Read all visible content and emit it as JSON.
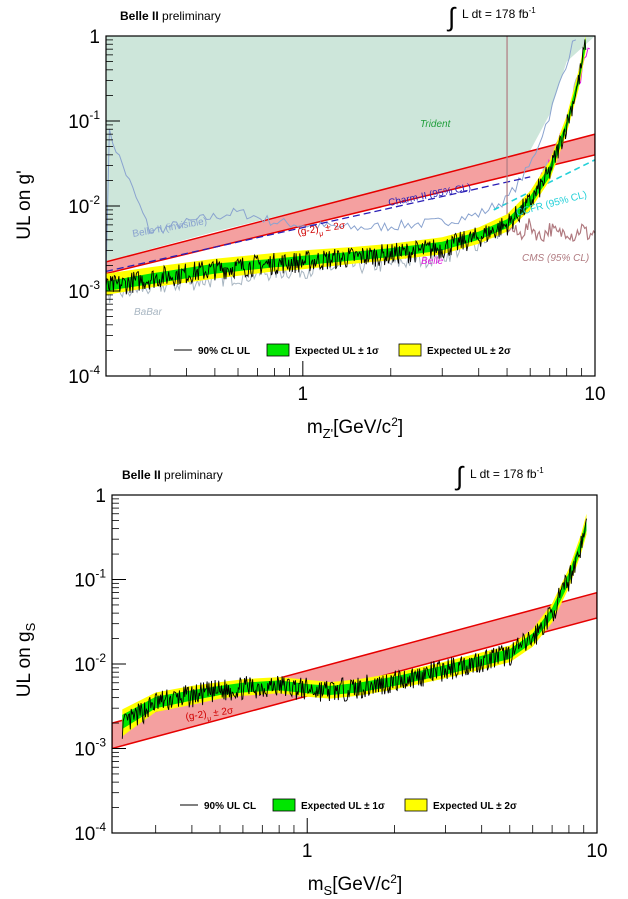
{
  "chart_data": [
    {
      "type": "line",
      "header": {
        "experiment": "Belle II",
        "status": "preliminary",
        "luminosity_prefix": "L dt = 178 fb",
        "luminosity_exp": "-1"
      },
      "xlabel": {
        "main": "m",
        "sub": "Z'",
        "rest": "[GeV/c",
        "sup": "2",
        "close": "]"
      },
      "ylabel": {
        "main": "UL on g'",
        "sub": ""
      },
      "x_scale": "log",
      "y_scale": "log",
      "xlim": [
        0.212,
        10.0
      ],
      "ylim": [
        0.0001,
        1.0
      ],
      "x_ticks": [
        "1",
        "10"
      ],
      "y_ticks": [
        {
          "base": "10",
          "exp": "-4"
        },
        {
          "base": "10",
          "exp": "-3"
        },
        {
          "base": "10",
          "exp": "-2"
        },
        {
          "base": "10",
          "exp": "-1"
        },
        {
          "base": "1",
          "exp": ""
        }
      ],
      "legend": {
        "position": "bottom-center",
        "entries": [
          "90% CL UL",
          "Expected UL ± 1σ",
          "Expected UL ± 2σ"
        ]
      },
      "observed_ul": {
        "x": [
          0.212,
          0.3,
          0.5,
          0.8,
          1.0,
          1.5,
          2.0,
          3.0,
          4.0,
          5.0,
          6.0,
          7.0,
          8.0,
          8.8,
          9.3
        ],
        "y": [
          0.0011,
          0.0014,
          0.0018,
          0.0021,
          0.0022,
          0.0025,
          0.0027,
          0.0032,
          0.0043,
          0.006,
          0.011,
          0.025,
          0.09,
          0.3,
          0.85
        ]
      },
      "expected_band_1sigma": {
        "x": [
          0.212,
          0.3,
          0.5,
          0.8,
          1.0,
          1.5,
          2.0,
          3.0,
          4.0,
          5.0,
          6.0,
          7.0,
          8.0,
          8.8,
          9.3
        ],
        "low": [
          0.001,
          0.0012,
          0.0016,
          0.0019,
          0.002,
          0.0023,
          0.0025,
          0.003,
          0.004,
          0.0055,
          0.01,
          0.022,
          0.08,
          0.27,
          0.75
        ],
        "high": [
          0.0013,
          0.0016,
          0.0021,
          0.0024,
          0.0026,
          0.0029,
          0.0032,
          0.0038,
          0.005,
          0.007,
          0.013,
          0.03,
          0.1,
          0.35,
          0.95
        ]
      },
      "expected_band_2sigma": {
        "x": [
          0.212,
          0.3,
          0.5,
          0.8,
          1.0,
          1.5,
          2.0,
          3.0,
          4.0,
          5.0,
          6.0,
          7.0,
          8.0,
          8.8,
          9.3
        ],
        "low": [
          0.0009,
          0.0011,
          0.0014,
          0.0017,
          0.0018,
          0.0021,
          0.0023,
          0.0027,
          0.0036,
          0.005,
          0.009,
          0.02,
          0.072,
          0.24,
          0.68
        ],
        "high": [
          0.0016,
          0.0019,
          0.0024,
          0.0028,
          0.003,
          0.0033,
          0.0036,
          0.0043,
          0.0056,
          0.008,
          0.015,
          0.034,
          0.115,
          0.4,
          1.0
        ]
      },
      "g2_band": {
        "label_main": "(g-2)",
        "label_sub": "μ",
        "label_tail": " ± 2σ",
        "x": [
          0.212,
          10.0
        ],
        "low": [
          0.0016,
          0.04
        ],
        "high": [
          0.0022,
          0.07
        ],
        "color": "#e60000",
        "fill": "#f4a0a0"
      },
      "excluded_region": {
        "name": "Trident",
        "color": "#cde6da",
        "text_color": "#1f9e3a",
        "x": [
          0.212,
          0.23,
          0.3,
          0.5,
          1.0,
          2.0,
          3.0,
          4.0,
          5.0,
          6.0,
          7.0,
          8.0,
          10.0
        ],
        "y": [
          0.0022,
          0.0024,
          0.0031,
          0.005,
          0.009,
          0.015,
          0.018,
          0.021,
          0.025,
          0.045,
          0.12,
          0.5,
          1.0
        ]
      },
      "other_limits": [
        {
          "name": "Belle II (invisible)",
          "color": "#8aa3cf",
          "x": [
            0.212,
            0.215,
            0.3,
            0.45,
            0.6,
            0.8,
            1.0,
            1.5,
            2.0,
            3.0,
            4.0,
            5.0,
            6.0,
            7.0,
            8.0,
            8.6
          ],
          "y": [
            0.0017,
            0.08,
            0.005,
            0.007,
            0.0085,
            0.0065,
            0.006,
            0.0055,
            0.0058,
            0.0065,
            0.008,
            0.012,
            0.03,
            0.12,
            0.5,
            1.0
          ]
        },
        {
          "name": "BaBar",
          "color": "#a8b6c2",
          "x": [
            0.212,
            0.3,
            0.5,
            0.8,
            1.0,
            1.5,
            2.0,
            3.0,
            4.0,
            5.0,
            6.0,
            7.0,
            8.0,
            9.0
          ],
          "y": [
            0.0009,
            0.0011,
            0.0014,
            0.0017,
            0.0018,
            0.002,
            0.0021,
            0.0026,
            0.0038,
            0.006,
            0.011,
            0.03,
            0.1,
            0.5
          ]
        },
        {
          "name": "Charm-II (95% CL)",
          "color": "#2a1fb6",
          "x": [
            0.212,
            6.0
          ],
          "y": [
            0.0017,
            0.022
          ]
        },
        {
          "name": "Belle",
          "color": "#e01ae0",
          "x": [
            0.212,
            0.3,
            0.5,
            1.0,
            2.0,
            3.0,
            4.0,
            5.0,
            6.0,
            7.0,
            8.0,
            9.0,
            9.6
          ],
          "y": [
            0.0012,
            0.0015,
            0.0019,
            0.0023,
            0.0028,
            0.0033,
            0.0043,
            0.0065,
            0.012,
            0.03,
            0.1,
            0.35,
            0.8
          ]
        },
        {
          "name": "CCFR (95% CL)",
          "color": "#22d0d8",
          "x": [
            4.5,
            10.0
          ],
          "y": [
            0.009,
            0.035
          ]
        },
        {
          "name": "CMS (95% CL)",
          "color": "#b07a80",
          "x": [
            5.0,
            5.0,
            5.5,
            6.0,
            6.5,
            7.0,
            7.5,
            8.0,
            8.5,
            9.0,
            9.5,
            10.0
          ],
          "y": [
            1.0,
            0.006,
            0.0045,
            0.006,
            0.0042,
            0.0055,
            0.0046,
            0.0052,
            0.0044,
            0.0056,
            0.0045,
            0.005
          ]
        }
      ]
    },
    {
      "type": "line",
      "header": {
        "experiment": "Belle II",
        "status": "preliminary",
        "luminosity_prefix": "L dt = 178 fb",
        "luminosity_exp": "-1"
      },
      "xlabel": {
        "main": "m",
        "sub": "S",
        "rest": "[GeV/c",
        "sup": "2",
        "close": "]"
      },
      "ylabel": {
        "main": "UL on g",
        "sub": "S"
      },
      "x_scale": "log",
      "y_scale": "log",
      "xlim": [
        0.212,
        10.0
      ],
      "ylim": [
        0.0001,
        1.0
      ],
      "x_ticks": [
        "1",
        "10"
      ],
      "y_ticks": [
        {
          "base": "10",
          "exp": "-4"
        },
        {
          "base": "10",
          "exp": "-3"
        },
        {
          "base": "10",
          "exp": "-2"
        },
        {
          "base": "10",
          "exp": "-1"
        },
        {
          "base": "1",
          "exp": ""
        }
      ],
      "legend": {
        "position": "bottom-center",
        "entries": [
          "90% UL CL",
          "Expected UL ± 1σ",
          "Expected UL ± 2σ"
        ]
      },
      "observed_ul": {
        "x": [
          0.23,
          0.3,
          0.4,
          0.5,
          0.6,
          0.8,
          1.0,
          1.2,
          1.5,
          2.0,
          3.0,
          4.0,
          5.0,
          6.0,
          7.0,
          8.0,
          8.8,
          9.2
        ],
        "y": [
          0.0018,
          0.0035,
          0.0042,
          0.0048,
          0.0052,
          0.0055,
          0.005,
          0.0048,
          0.0052,
          0.0062,
          0.0085,
          0.011,
          0.013,
          0.02,
          0.04,
          0.1,
          0.25,
          0.45
        ]
      },
      "expected_band_1sigma": {
        "x": [
          0.23,
          0.3,
          0.4,
          0.5,
          0.6,
          0.8,
          1.0,
          1.2,
          1.5,
          2.0,
          3.0,
          4.0,
          5.0,
          6.0,
          7.0,
          8.0,
          8.8,
          9.2
        ],
        "low": [
          0.0017,
          0.003,
          0.0037,
          0.0043,
          0.0046,
          0.0049,
          0.0045,
          0.0043,
          0.0046,
          0.0055,
          0.0075,
          0.0095,
          0.0115,
          0.018,
          0.035,
          0.09,
          0.22,
          0.38
        ],
        "high": [
          0.0025,
          0.0041,
          0.0049,
          0.0055,
          0.006,
          0.0064,
          0.0058,
          0.0055,
          0.006,
          0.0071,
          0.0097,
          0.0125,
          0.015,
          0.023,
          0.046,
          0.12,
          0.3,
          0.52
        ]
      },
      "expected_band_2sigma": {
        "x": [
          0.23,
          0.3,
          0.4,
          0.5,
          0.6,
          0.8,
          1.0,
          1.2,
          1.5,
          2.0,
          3.0,
          4.0,
          5.0,
          6.0,
          7.0,
          8.0,
          8.8,
          9.2
        ],
        "low": [
          0.0014,
          0.0027,
          0.0033,
          0.0039,
          0.0042,
          0.0045,
          0.0041,
          0.0039,
          0.0042,
          0.005,
          0.0068,
          0.0086,
          0.0105,
          0.016,
          0.031,
          0.08,
          0.2,
          0.34
        ],
        "high": [
          0.0029,
          0.0046,
          0.0055,
          0.0061,
          0.0066,
          0.007,
          0.0065,
          0.0061,
          0.0066,
          0.0078,
          0.0107,
          0.0137,
          0.0165,
          0.026,
          0.052,
          0.135,
          0.34,
          0.6
        ]
      },
      "g2_band": {
        "label_main": "(g-2)",
        "label_sub": "μ",
        "label_tail": " ± 2σ",
        "x": [
          0.212,
          10.0
        ],
        "low": [
          0.001,
          0.035
        ],
        "high": [
          0.002,
          0.07
        ],
        "color": "#e60000",
        "fill": "#f4a0a0"
      }
    }
  ],
  "colors": {
    "observed": "#000000",
    "band_1sigma": "#00e600",
    "band_2sigma": "#ffff00",
    "axis": "#000000",
    "label_red": "#d00000"
  }
}
